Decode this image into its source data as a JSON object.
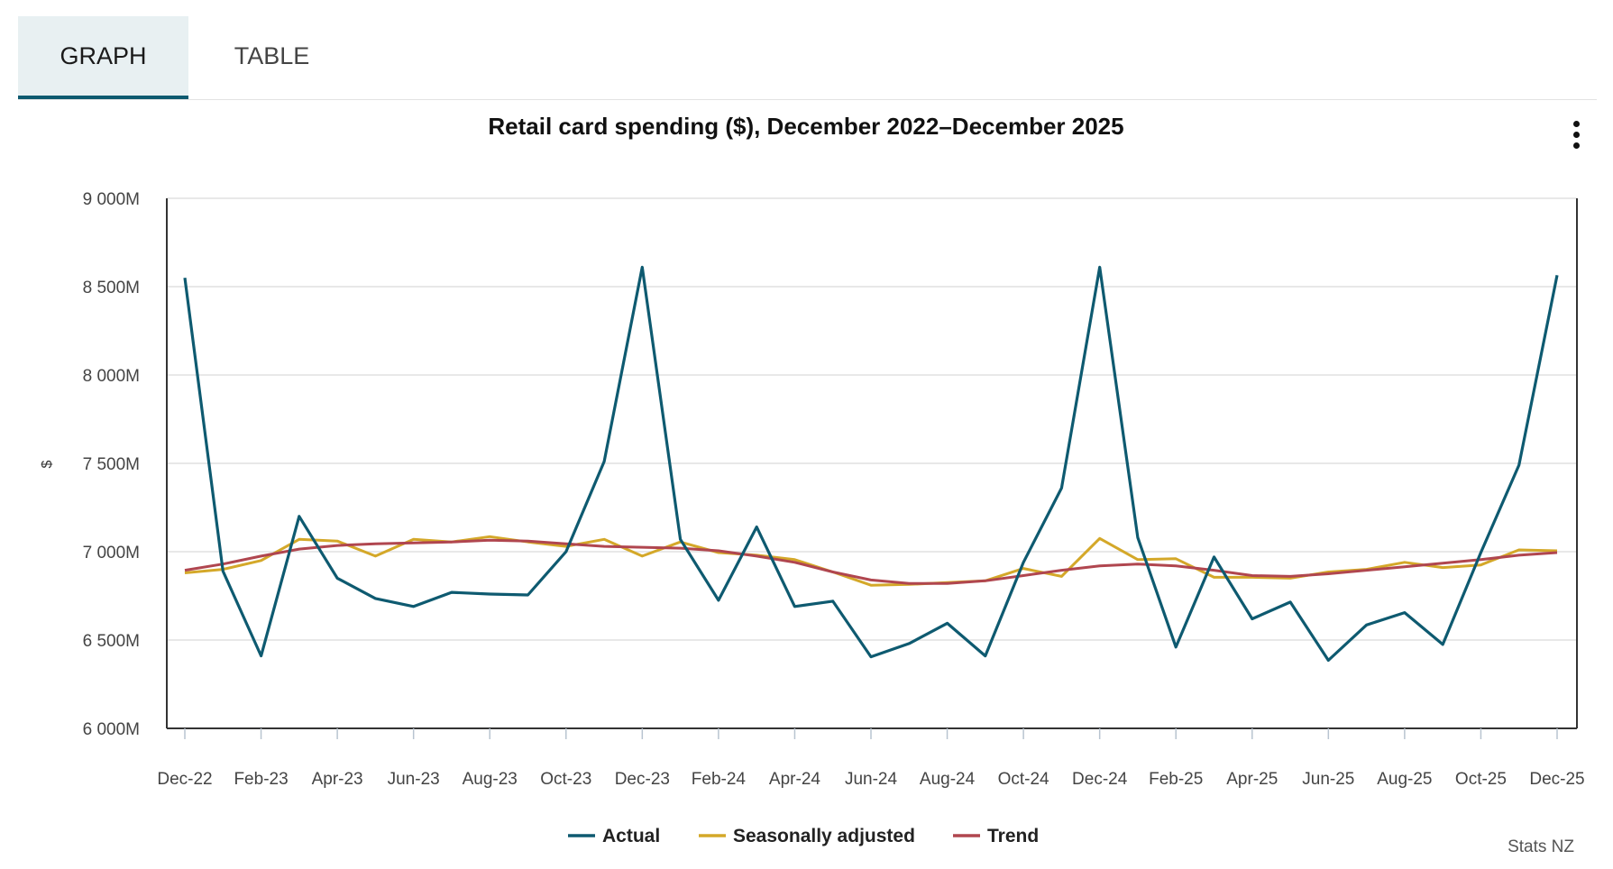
{
  "tabs": {
    "graph": "GRAPH",
    "table": "TABLE"
  },
  "colors": {
    "actual": "#0e5a70",
    "seasonally_adjusted": "#d4a829",
    "trend": "#b0464f"
  },
  "chart_data": {
    "type": "line",
    "title": "Retail card spending ($), December 2022–December 2025",
    "ylabel": "$",
    "xlabel": "",
    "ylim": [
      6000,
      9000
    ],
    "y_ticks": [
      {
        "value": 9000,
        "label": "9 000M"
      },
      {
        "value": 8500,
        "label": "8 500M"
      },
      {
        "value": 8000,
        "label": "8 000M"
      },
      {
        "value": 7500,
        "label": "7 500M"
      },
      {
        "value": 7000,
        "label": "7 000M"
      },
      {
        "value": 6500,
        "label": "6 500M"
      },
      {
        "value": 6000,
        "label": "6 000M"
      }
    ],
    "x": [
      "Dec-22",
      "Jan-23",
      "Feb-23",
      "Mar-23",
      "Apr-23",
      "May-23",
      "Jun-23",
      "Jul-23",
      "Aug-23",
      "Sep-23",
      "Oct-23",
      "Nov-23",
      "Dec-23",
      "Jan-24",
      "Feb-24",
      "Mar-24",
      "Apr-24",
      "May-24",
      "Jun-24",
      "Jul-24",
      "Aug-24",
      "Sep-24",
      "Oct-24",
      "Nov-24",
      "Dec-24",
      "Jan-25",
      "Feb-25",
      "Mar-25",
      "Apr-25",
      "May-25",
      "Jun-25",
      "Jul-25",
      "Aug-25",
      "Sep-25",
      "Oct-25",
      "Nov-25",
      "Dec-25"
    ],
    "x_tick_labels": [
      "Dec-22",
      "Feb-23",
      "Apr-23",
      "Jun-23",
      "Aug-23",
      "Oct-23",
      "Dec-23",
      "Feb-24",
      "Apr-24",
      "Jun-24",
      "Aug-24",
      "Oct-24",
      "Dec-24",
      "Feb-25",
      "Apr-25",
      "Jun-25",
      "Aug-25",
      "Oct-25",
      "Dec-25"
    ],
    "series": [
      {
        "name": "Actual",
        "values": [
          8550,
          6890,
          6410,
          7200,
          6850,
          6735,
          6690,
          6770,
          6760,
          6755,
          7000,
          7510,
          8610,
          7070,
          6725,
          7140,
          6690,
          6720,
          6405,
          6480,
          6595,
          6410,
          6940,
          7360,
          8610,
          7080,
          6460,
          6970,
          6620,
          6715,
          6385,
          6585,
          6655,
          6475,
          6995,
          7490,
          8565
        ]
      },
      {
        "name": "Seasonally adjusted",
        "values": [
          6880,
          6900,
          6950,
          7070,
          7060,
          6975,
          7070,
          7055,
          7085,
          7055,
          7030,
          7070,
          6975,
          7055,
          6995,
          6980,
          6955,
          6885,
          6810,
          6815,
          6825,
          6835,
          6905,
          6860,
          7075,
          6955,
          6960,
          6855,
          6855,
          6850,
          6885,
          6900,
          6940,
          6910,
          6925,
          7010,
          7005
        ]
      },
      {
        "name": "Trend",
        "values": [
          6895,
          6930,
          6975,
          7015,
          7035,
          7045,
          7050,
          7055,
          7065,
          7060,
          7045,
          7030,
          7025,
          7020,
          7005,
          6975,
          6940,
          6885,
          6840,
          6820,
          6820,
          6835,
          6865,
          6895,
          6920,
          6930,
          6920,
          6895,
          6865,
          6860,
          6875,
          6895,
          6915,
          6935,
          6955,
          6980,
          6995
        ]
      }
    ],
    "legend": {
      "position": "bottom-center",
      "entries": [
        "Actual",
        "Seasonally adjusted",
        "Trend"
      ]
    },
    "credit": "Stats NZ",
    "grid": true
  }
}
